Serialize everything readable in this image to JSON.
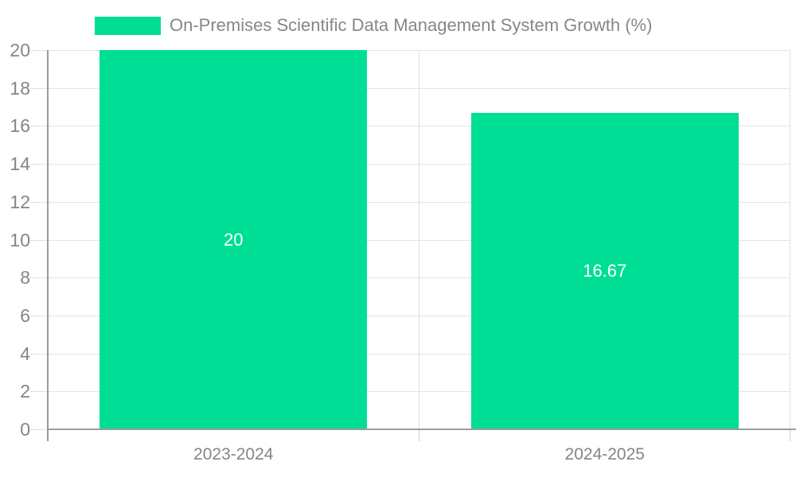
{
  "chart_data": {
    "type": "bar",
    "title": "",
    "legend_label": "On-Premises Scientific Data Management System Growth (%)",
    "categories": [
      "2023-2024",
      "2024-2025"
    ],
    "series": [
      {
        "name": "On-Premises Scientific Data Management System Growth (%)",
        "values": [
          20,
          16.67
        ],
        "value_labels": [
          "20",
          "16.67"
        ],
        "color": "#00DE96"
      }
    ],
    "ylim": [
      0,
      20
    ],
    "ytick_step": 2,
    "ytick_labels": [
      "0",
      "2",
      "4",
      "6",
      "8",
      "10",
      "12",
      "14",
      "16",
      "18",
      "20"
    ],
    "grid": true,
    "legend_position": "top",
    "data_label_position": "center",
    "data_label_color": "#ffffff"
  },
  "colors": {
    "bar": "#00DE96",
    "axis_text": "#858585",
    "legend_text": "#878787",
    "gridline": "#e3e3e3",
    "axis_line": "#999999",
    "background": "#ffffff"
  }
}
